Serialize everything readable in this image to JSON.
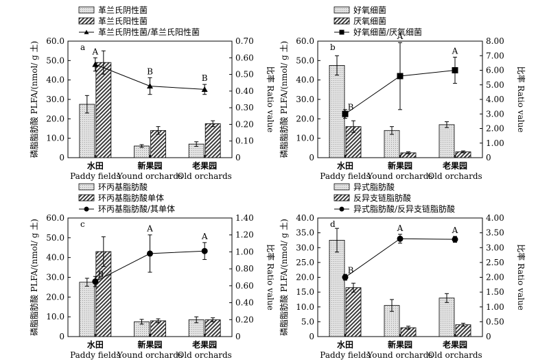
{
  "chart_data": [
    {
      "type": "bar",
      "panel_label": "a",
      "categories": [
        "水田",
        "新果园",
        "老果园"
      ],
      "categories_en": [
        "Paddy fields",
        "Yound orchards",
        "Old orchards"
      ],
      "ylabel": "磷脂脂肪酸 PLFA/(nmol/ g 土)",
      "y2label": "比率 Ratio value",
      "ylim": [
        0,
        60
      ],
      "y_ticks": [
        "0",
        "10.0",
        "20.0",
        "30.0",
        "40.0",
        "50.0",
        "60.0"
      ],
      "y2lim": [
        0,
        0.7
      ],
      "y2_ticks": [
        "0",
        "0.10",
        "0.20",
        "0.30",
        "0.40",
        "0.50",
        "0.60",
        "0.70"
      ],
      "series": [
        {
          "name": "革兰氏阴性菌",
          "values": [
            27.5,
            6,
            7
          ],
          "errors": [
            4.5,
            0.7,
            1.2
          ]
        },
        {
          "name": "革兰氏阳性菌",
          "values": [
            49,
            14,
            17.5
          ],
          "errors": [
            6,
            2,
            1.5
          ]
        }
      ],
      "ratio_series": {
        "name": "革兰氏阴性菌/革兰氏阳性菌",
        "marker": "triangle",
        "values": [
          0.56,
          0.43,
          0.41
        ],
        "errors": [
          0.04,
          0.05,
          0.03
        ]
      },
      "significance_labels": [
        "A",
        "B",
        "B"
      ]
    },
    {
      "type": "bar",
      "panel_label": "b",
      "categories": [
        "水田",
        "新果园",
        "老果园"
      ],
      "categories_en": [
        "Paddy fields",
        "Yound orchards",
        "Old orchards"
      ],
      "ylabel": "磷脂脂肪酸 PLFA/(nmol/ g 土)",
      "y2label": "比率 Ratio value",
      "ylim": [
        0,
        60
      ],
      "y_ticks": [
        "0",
        "10.0",
        "20.0",
        "30.0",
        "40.0",
        "50.0",
        "60.0"
      ],
      "y2lim": [
        0,
        8
      ],
      "y2_ticks": [
        "0",
        "1.00",
        "2.00",
        "3.00",
        "4.00",
        "5.00",
        "6.00",
        "7.00",
        "8.00"
      ],
      "series": [
        {
          "name": "好氧细菌",
          "values": [
            47.5,
            14,
            17
          ],
          "errors": [
            5,
            2,
            1.5
          ]
        },
        {
          "name": "厌氧细菌",
          "values": [
            16,
            2.5,
            3
          ],
          "errors": [
            3,
            0.5,
            0.5
          ]
        }
      ],
      "ratio_series": {
        "name": "好氧细菌/厌氧细菌",
        "marker": "square",
        "values": [
          3.0,
          5.6,
          6.0
        ],
        "errors": [
          0.3,
          2.3,
          0.9
        ]
      },
      "significance_labels": [
        "B",
        "A",
        "A"
      ]
    },
    {
      "type": "bar",
      "panel_label": "c",
      "categories": [
        "水田",
        "新果园",
        "老果园"
      ],
      "categories_en": [
        "Paddy fields",
        "Yound orchards",
        "Old orchards"
      ],
      "ylabel": "磷脂脂肪酸 PLFA/(nmol/ g 土)",
      "y2label": "比率 Ratio value",
      "ylim": [
        0,
        60
      ],
      "y_ticks": [
        "0",
        "10.0",
        "20.0",
        "30.0",
        "40.0",
        "50.0",
        "60.0"
      ],
      "y2lim": [
        0,
        1.4
      ],
      "y2_ticks": [
        "0",
        "0.20",
        "0.40",
        "0.60",
        "0.80",
        "1.00",
        "1.20",
        "1.40"
      ],
      "series": [
        {
          "name": "环丙基脂肪酸",
          "values": [
            27.5,
            7.5,
            8.5
          ],
          "errors": [
            2,
            1.2,
            1.5
          ]
        },
        {
          "name": "环丙基脂肪酸单体",
          "values": [
            43,
            8,
            8.5
          ],
          "errors": [
            7.5,
            1,
            1
          ]
        }
      ],
      "ratio_series": {
        "name": "环丙基脂肪酸/其单体",
        "marker": "circle",
        "values": [
          0.65,
          0.98,
          1.01
        ],
        "errors": [
          0.06,
          0.22,
          0.1
        ]
      },
      "significance_labels": [
        "B",
        "A",
        "A"
      ]
    },
    {
      "type": "bar",
      "panel_label": "d",
      "categories": [
        "水田",
        "新果园",
        "老果园"
      ],
      "categories_en": [
        "Paddy fields",
        "Yound orchards",
        "Old orchards"
      ],
      "ylabel": "磷脂脂肪酸 PLFA/(nmol/ g 土)",
      "y2label": "比率 Ratio value",
      "ylim": [
        0,
        40
      ],
      "y_ticks": [
        "0",
        "5.0",
        "10.0",
        "15.0",
        "20.0",
        "25.0",
        "30.0",
        "35.0",
        "40.0"
      ],
      "y2lim": [
        0,
        4
      ],
      "y2_ticks": [
        "0",
        "0.50",
        "1.00",
        "1.50",
        "2.00",
        "2.50",
        "3.00",
        "3.50",
        "4.00"
      ],
      "series": [
        {
          "name": "异式脂肪酸",
          "values": [
            32.5,
            10.5,
            13
          ],
          "errors": [
            4,
            2,
            1.5
          ]
        },
        {
          "name": "反异支链脂肪酸",
          "values": [
            16.5,
            3,
            4
          ],
          "errors": [
            1.5,
            0.5,
            0.5
          ]
        }
      ],
      "ratio_series": {
        "name": "异式脂肪酸/反异支链脂肪酸",
        "marker": "circle",
        "values": [
          2.0,
          3.3,
          3.28
        ],
        "errors": [
          0.1,
          0.15,
          0.1
        ]
      },
      "significance_labels": [
        "B",
        "A",
        "A"
      ]
    }
  ]
}
